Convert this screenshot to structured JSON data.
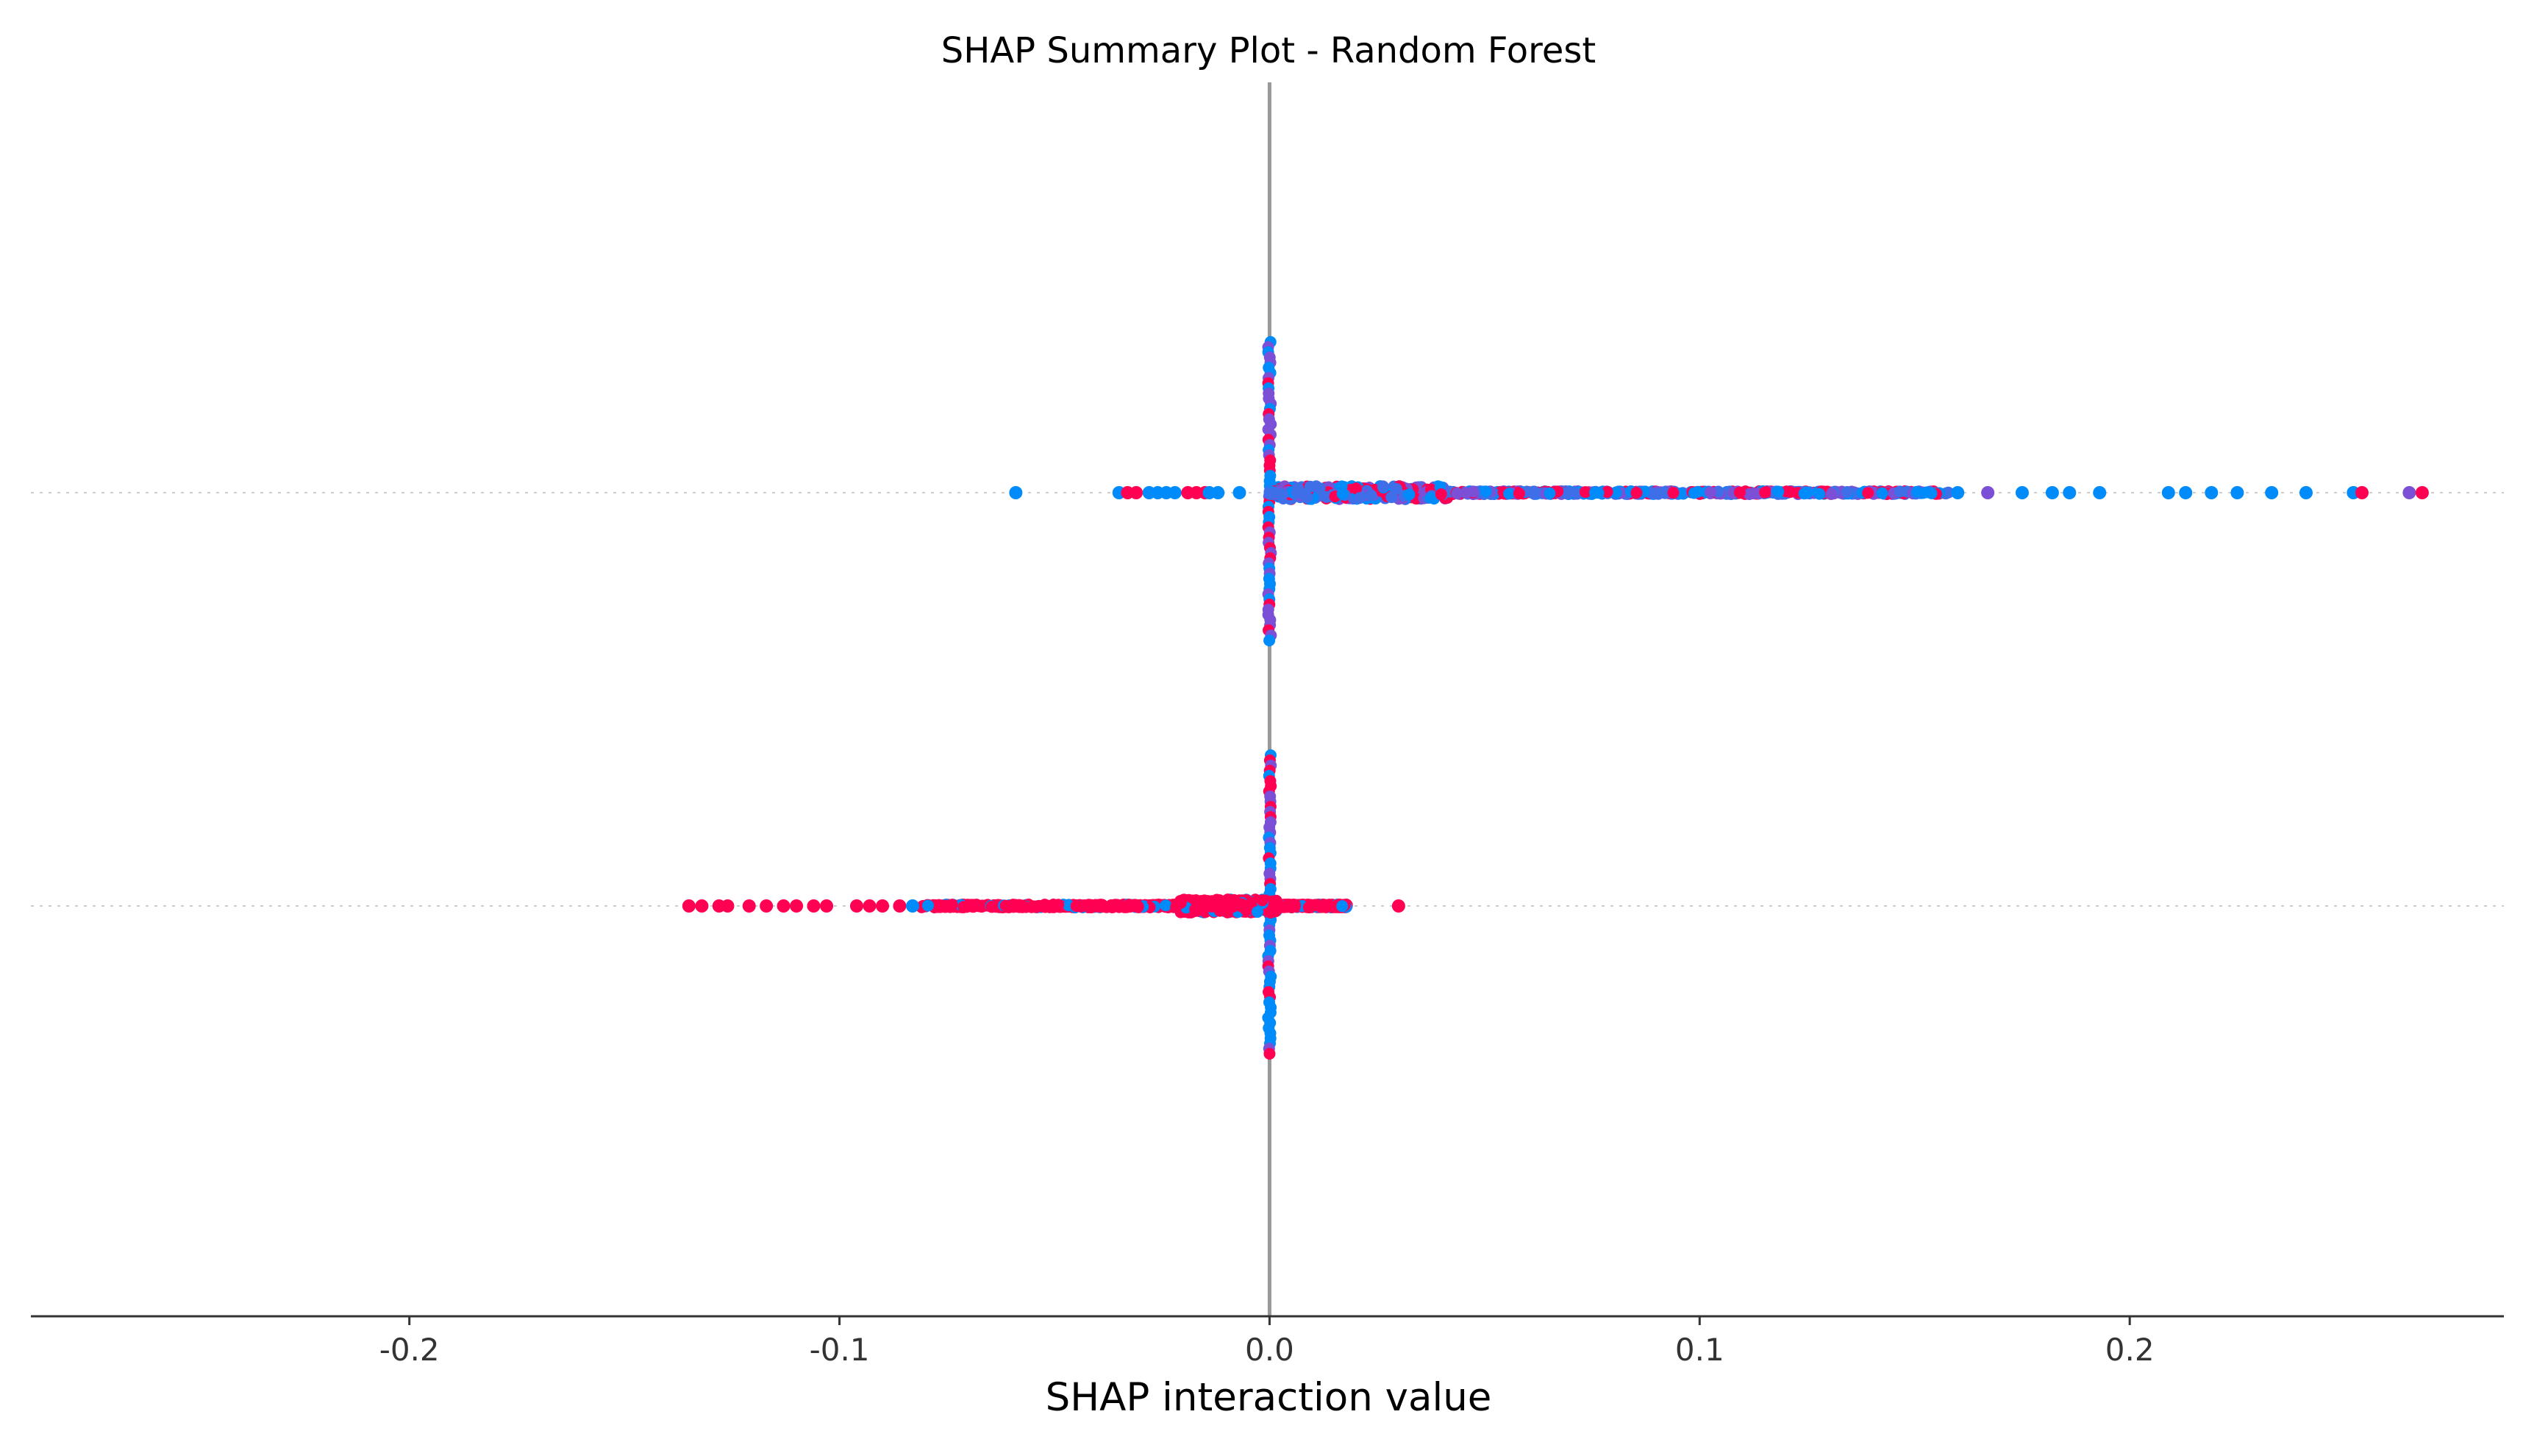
{
  "chart_data": {
    "type": "scatter",
    "title": "SHAP Summary Plot - Random Forest",
    "xlabel": "SHAP interaction value",
    "ylabel": "",
    "xlim": [
      -0.288,
      0.287
    ],
    "xticks": [
      -0.2,
      -0.1,
      0.0,
      0.1,
      0.2
    ],
    "xtick_labels": [
      "-0.2",
      "-0.1",
      "0.0",
      "0.1",
      "0.2"
    ],
    "zero_line": 0.0,
    "grid": "horizontal dotted lines at each feature row",
    "legend": "none",
    "colors": {
      "low": "#008bfb",
      "high": "#ff0052",
      "mid": "#7b4fd6",
      "zero_line": "#999999",
      "grid": "#cccccc",
      "axis": "#333333"
    },
    "rows": [
      {
        "vertical_spread": [
          -0.0,
          0.0
        ],
        "sample_points": [
          [
            -0.059,
            0.0,
            "low"
          ],
          [
            -0.035,
            0.0,
            "low"
          ],
          [
            -0.033,
            0.0,
            "high"
          ],
          [
            -0.031,
            0.0,
            "high"
          ],
          [
            -0.028,
            0.0,
            "low"
          ],
          [
            -0.026,
            0.0,
            "low"
          ],
          [
            -0.024,
            0.0,
            "low"
          ],
          [
            -0.022,
            0.0,
            "low"
          ],
          [
            -0.019,
            0.0,
            "high"
          ],
          [
            -0.017,
            0.0,
            "high"
          ],
          [
            -0.015,
            0.0,
            "high"
          ],
          [
            -0.014,
            0.0,
            "low"
          ],
          [
            -0.012,
            0.0,
            "low"
          ],
          [
            -0.007,
            0.0,
            "low"
          ],
          [
            0.16,
            0.0,
            "low"
          ],
          [
            0.167,
            0.0,
            "mid"
          ],
          [
            0.175,
            0.0,
            "low"
          ],
          [
            0.182,
            0.0,
            "low"
          ],
          [
            0.186,
            0.0,
            "low"
          ],
          [
            0.193,
            0.0,
            "low"
          ],
          [
            0.209,
            0.0,
            "low"
          ],
          [
            0.213,
            0.0,
            "low"
          ],
          [
            0.219,
            0.0,
            "low"
          ],
          [
            0.225,
            0.0,
            "low"
          ],
          [
            0.233,
            0.0,
            "low"
          ],
          [
            0.241,
            0.0,
            "low"
          ],
          [
            0.252,
            0.0,
            "low"
          ],
          [
            0.254,
            0.0,
            "high"
          ],
          [
            0.265,
            0.0,
            "mid"
          ],
          [
            0.268,
            0.0,
            "high"
          ]
        ],
        "dense_band": [
          0.0,
          0.158
        ],
        "zero_stack": true
      },
      {
        "sample_points": [
          [
            -0.135,
            0.0,
            "high"
          ],
          [
            -0.132,
            0.0,
            "high"
          ],
          [
            -0.128,
            0.0,
            "high"
          ],
          [
            -0.126,
            0.0,
            "high"
          ],
          [
            -0.121,
            0.0,
            "high"
          ],
          [
            -0.117,
            0.0,
            "high"
          ],
          [
            -0.113,
            0.0,
            "high"
          ],
          [
            -0.11,
            0.0,
            "high"
          ],
          [
            -0.106,
            0.0,
            "high"
          ],
          [
            -0.103,
            0.0,
            "high"
          ],
          [
            -0.096,
            0.0,
            "high"
          ],
          [
            -0.093,
            0.0,
            "high"
          ],
          [
            -0.09,
            0.0,
            "high"
          ],
          [
            -0.086,
            0.0,
            "high"
          ],
          [
            -0.083,
            0.0,
            "low"
          ],
          [
            0.03,
            0.0,
            "high"
          ]
        ],
        "dense_band": [
          -0.081,
          0.018
        ],
        "zero_stack": true
      }
    ]
  }
}
